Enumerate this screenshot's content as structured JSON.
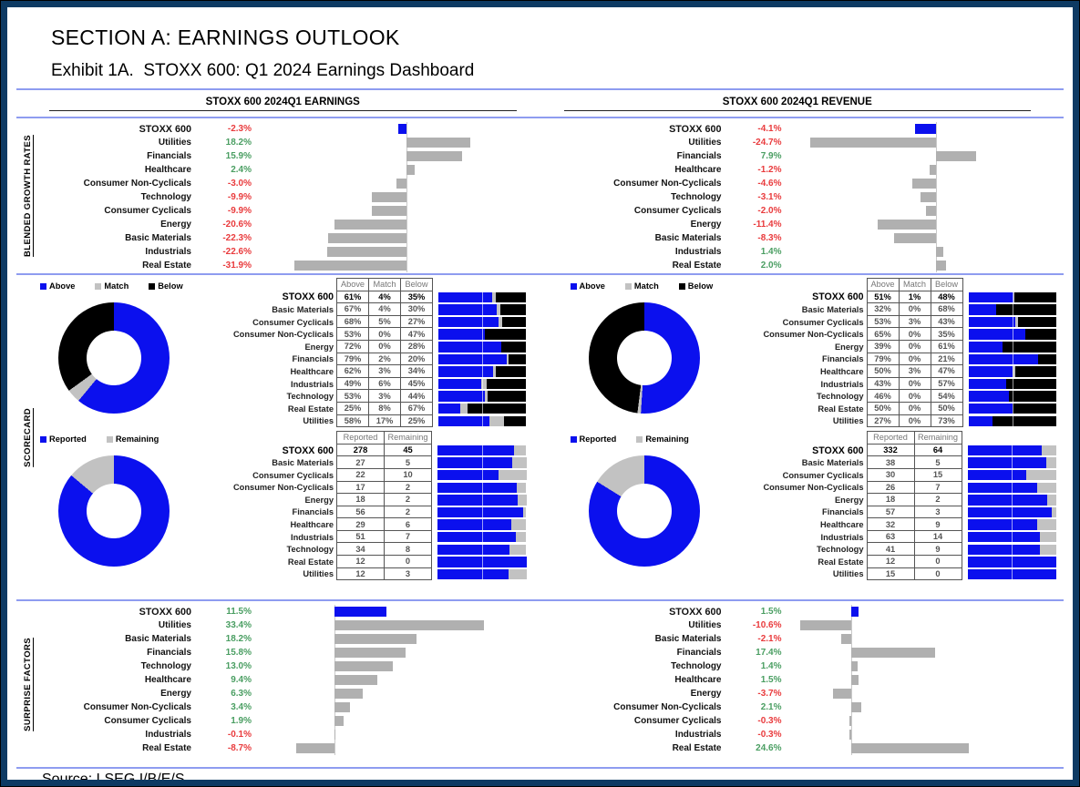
{
  "title": "SECTION A: EARNINGS OUTLOOK",
  "subtitle": "Exhibit 1A.  STOXX 600: Q1 2024 Earnings Dashboard",
  "source": "Source: LSEG I/B/E/S",
  "columns": {
    "earnings_header": "STOXX 600 2024Q1 EARNINGS",
    "revenue_header": "STOXX 600 2024Q1 REVENUE"
  },
  "sections": {
    "growth": "BLENDED GROWTH RATES",
    "scorecard": "SCORECARD",
    "surprise": "SURPRISE FACTORS"
  },
  "colors": {
    "blue": "#0b10ee",
    "gray": "#b0b0b0",
    "silver": "#c2c2c2",
    "black": "#000000",
    "green": "#4a9e62",
    "red": "#e93b3d",
    "divider": "#8e9cf0",
    "navy": "#0d3a63"
  },
  "chart_data": [
    {
      "id": "growth_earnings",
      "type": "bar",
      "orientation": "horizontal",
      "title": "Blended growth rates — earnings",
      "categories": [
        "STOXX 600",
        "Utilities",
        "Financials",
        "Healthcare",
        "Consumer Non-Cyclicals",
        "Technology",
        "Consumer Cyclicals",
        "Energy",
        "Basic Materials",
        "Industrials",
        "Real Estate"
      ],
      "values": [
        -2.3,
        18.2,
        15.9,
        2.4,
        -3.0,
        -9.9,
        -9.9,
        -20.6,
        -22.3,
        -22.6,
        -31.9
      ],
      "unit": "%",
      "xlim": [
        -42,
        33
      ],
      "highlight_first": true
    },
    {
      "id": "growth_revenue",
      "type": "bar",
      "orientation": "horizontal",
      "title": "Blended growth rates — revenue",
      "categories": [
        "STOXX 600",
        "Utilities",
        "Financials",
        "Healthcare",
        "Consumer Non-Cyclicals",
        "Technology",
        "Consumer Cyclicals",
        "Energy",
        "Basic Materials",
        "Industrials",
        "Real Estate"
      ],
      "values": [
        -4.1,
        -24.7,
        7.9,
        -1.2,
        -4.6,
        -3.1,
        -2.0,
        -11.4,
        -8.3,
        1.4,
        2.0
      ],
      "unit": "%",
      "xlim": [
        -29,
        23
      ],
      "highlight_first": true
    },
    {
      "id": "score_amb_earnings",
      "type": "table",
      "title": "Earnings scorecard — above/match/below",
      "legend": [
        "Above",
        "Match",
        "Below"
      ],
      "legend_colors": [
        "blue",
        "silver",
        "black"
      ],
      "headers": [
        "Above",
        "Match",
        "Below"
      ],
      "cell_suffix": "%",
      "bar_mode": "stack",
      "donut_mode": "pct",
      "donut": [
        61,
        4,
        35
      ],
      "donut_colors": [
        "blue",
        "silver",
        "black"
      ],
      "categories": [
        "STOXX 600",
        "Basic Materials",
        "Consumer Cyclicals",
        "Consumer Non-Cyclicals",
        "Energy",
        "Financials",
        "Healthcare",
        "Industrials",
        "Technology",
        "Real Estate",
        "Utilities"
      ],
      "rows": [
        [
          61,
          4,
          35
        ],
        [
          67,
          4,
          30
        ],
        [
          68,
          5,
          27
        ],
        [
          53,
          0,
          47
        ],
        [
          72,
          0,
          28
        ],
        [
          79,
          2,
          20
        ],
        [
          62,
          3,
          34
        ],
        [
          49,
          6,
          45
        ],
        [
          53,
          3,
          44
        ],
        [
          25,
          8,
          67
        ],
        [
          58,
          17,
          25
        ]
      ]
    },
    {
      "id": "score_amb_revenue",
      "type": "table",
      "title": "Revenue scorecard — above/match/below",
      "legend": [
        "Above",
        "Match",
        "Below"
      ],
      "legend_colors": [
        "blue",
        "silver",
        "black"
      ],
      "headers": [
        "Above",
        "Match",
        "Below"
      ],
      "cell_suffix": "%",
      "bar_mode": "stack",
      "donut_mode": "pct",
      "donut": [
        51,
        1,
        48
      ],
      "donut_colors": [
        "blue",
        "silver",
        "black"
      ],
      "categories": [
        "STOXX 600",
        "Basic Materials",
        "Consumer Cyclicals",
        "Consumer Non-Cyclicals",
        "Energy",
        "Financials",
        "Healthcare",
        "Industrials",
        "Technology",
        "Real Estate",
        "Utilities"
      ],
      "rows": [
        [
          51,
          1,
          48
        ],
        [
          32,
          0,
          68
        ],
        [
          53,
          3,
          43
        ],
        [
          65,
          0,
          35
        ],
        [
          39,
          0,
          61
        ],
        [
          79,
          0,
          21
        ],
        [
          50,
          3,
          47
        ],
        [
          43,
          0,
          57
        ],
        [
          46,
          0,
          54
        ],
        [
          50,
          0,
          50
        ],
        [
          27,
          0,
          73
        ]
      ]
    },
    {
      "id": "score_rr_earnings",
      "type": "table",
      "title": "Earnings scorecard — reported/remaining",
      "legend": [
        "Reported",
        "Remaining"
      ],
      "legend_colors": [
        "blue",
        "silver"
      ],
      "headers": [
        "Reported",
        "Remaining"
      ],
      "cell_suffix": "",
      "bar_mode": "ratio",
      "donut_mode": "ratio",
      "donut": [
        278,
        45
      ],
      "donut_colors": [
        "blue",
        "silver"
      ],
      "categories": [
        "STOXX 600",
        "Basic Materials",
        "Consumer Cyclicals",
        "Consumer Non-Cyclicals",
        "Energy",
        "Financials",
        "Healthcare",
        "Industrials",
        "Technology",
        "Real Estate",
        "Utilities"
      ],
      "rows": [
        [
          278,
          45
        ],
        [
          27,
          5
        ],
        [
          22,
          10
        ],
        [
          17,
          2
        ],
        [
          18,
          2
        ],
        [
          56,
          2
        ],
        [
          29,
          6
        ],
        [
          51,
          7
        ],
        [
          34,
          8
        ],
        [
          12,
          0
        ],
        [
          12,
          3
        ]
      ]
    },
    {
      "id": "score_rr_revenue",
      "type": "table",
      "title": "Revenue scorecard — reported/remaining",
      "legend": [
        "Reported",
        "Remaining"
      ],
      "legend_colors": [
        "blue",
        "silver"
      ],
      "headers": [
        "Reported",
        "Remaining"
      ],
      "cell_suffix": "",
      "bar_mode": "ratio",
      "donut_mode": "ratio",
      "donut": [
        332,
        64
      ],
      "donut_colors": [
        "blue",
        "silver"
      ],
      "categories": [
        "STOXX 600",
        "Basic Materials",
        "Consumer Cyclicals",
        "Consumer Non-Cyclicals",
        "Energy",
        "Financials",
        "Healthcare",
        "Industrials",
        "Technology",
        "Real Estate",
        "Utilities"
      ],
      "rows": [
        [
          332,
          64
        ],
        [
          38,
          5
        ],
        [
          30,
          15
        ],
        [
          26,
          7
        ],
        [
          18,
          2
        ],
        [
          57,
          3
        ],
        [
          32,
          9
        ],
        [
          63,
          14
        ],
        [
          41,
          9
        ],
        [
          12,
          0
        ],
        [
          15,
          0
        ]
      ]
    },
    {
      "id": "surprise_earnings",
      "type": "bar",
      "orientation": "horizontal",
      "title": "Surprise factors — earnings",
      "categories": [
        "STOXX 600",
        "Utilities",
        "Basic Materials",
        "Financials",
        "Technology",
        "Healthcare",
        "Energy",
        "Consumer Non-Cyclicals",
        "Consumer Cyclicals",
        "Industrials",
        "Real Estate"
      ],
      "values": [
        11.5,
        33.4,
        18.2,
        15.8,
        13.0,
        9.4,
        6.3,
        3.4,
        1.9,
        -0.1,
        -8.7
      ],
      "unit": "%",
      "xlim": [
        -17,
        42
      ],
      "highlight_first": true
    },
    {
      "id": "surprise_revenue",
      "type": "bar",
      "orientation": "horizontal",
      "title": "Surprise factors — revenue",
      "categories": [
        "STOXX 600",
        "Utilities",
        "Basic Materials",
        "Financials",
        "Technology",
        "Healthcare",
        "Energy",
        "Consumer Non-Cyclicals",
        "Consumer Cyclicals",
        "Industrials",
        "Real Estate"
      ],
      "values": [
        1.5,
        -10.6,
        -2.1,
        17.4,
        1.4,
        1.5,
        -3.7,
        2.1,
        -0.3,
        -0.3,
        24.6
      ],
      "unit": "%",
      "xlim": [
        -13,
        42
      ],
      "highlight_first": true
    }
  ]
}
